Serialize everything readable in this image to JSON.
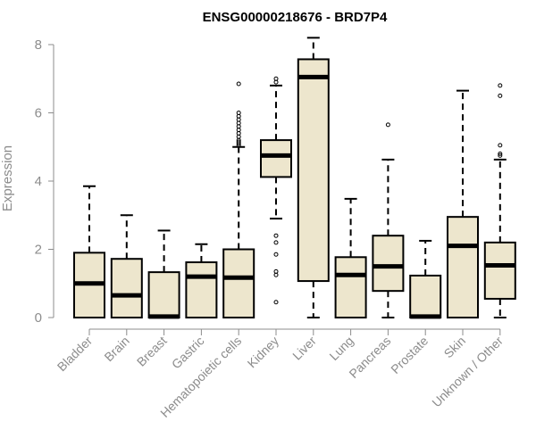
{
  "chart_data": {
    "type": "boxplot",
    "title": "ENSG00000218676 - BRD7P4",
    "xlabel": "",
    "ylabel": "Expression",
    "ylim": [
      0,
      8
    ],
    "yticks": [
      0,
      2,
      4,
      6,
      8
    ],
    "grid": false,
    "legend": "none",
    "colors": {
      "box_fill": "#ede6cd",
      "stroke": "#000000",
      "axis_text": "#8c8c8c"
    },
    "categories": [
      "Bladder",
      "Brain",
      "Breast",
      "Gastric",
      "Hematopoietic cells",
      "Kidney",
      "Liver",
      "Lung",
      "Pancreas",
      "Prostate",
      "Skin",
      "Unknown / Other"
    ],
    "boxes": [
      {
        "category": "Bladder",
        "whisker_low": 0,
        "q1": 0,
        "median": 1.0,
        "q3": 1.9,
        "whisker_high": 3.85,
        "outliers": []
      },
      {
        "category": "Brain",
        "whisker_low": 0,
        "q1": 0,
        "median": 0.65,
        "q3": 1.72,
        "whisker_high": 3.0,
        "outliers": []
      },
      {
        "category": "Breast",
        "whisker_low": 0,
        "q1": 0,
        "median": 0.03,
        "q3": 1.33,
        "whisker_high": 2.55,
        "outliers": []
      },
      {
        "category": "Gastric",
        "whisker_low": 0,
        "q1": 0,
        "median": 1.2,
        "q3": 1.62,
        "whisker_high": 2.15,
        "outliers": []
      },
      {
        "category": "Hematopoietic cells",
        "whisker_low": 0,
        "q1": 0,
        "median": 1.17,
        "q3": 2.0,
        "whisker_high": 5.0,
        "outliers": [
          5.05,
          5.1,
          5.15,
          5.2,
          5.3,
          5.4,
          5.5,
          5.6,
          5.7,
          5.8,
          5.9,
          6.0,
          6.85
        ]
      },
      {
        "category": "Kidney",
        "whisker_low": 2.9,
        "q1": 4.12,
        "median": 4.75,
        "q3": 5.2,
        "whisker_high": 6.8,
        "outliers": [
          0.45,
          1.25,
          1.35,
          1.85,
          2.2,
          2.4,
          6.9,
          7.0
        ]
      },
      {
        "category": "Liver",
        "whisker_low": 0,
        "q1": 1.07,
        "median": 7.05,
        "q3": 7.57,
        "whisker_high": 8.2,
        "outliers": []
      },
      {
        "category": "Lung",
        "whisker_low": 0,
        "q1": 0,
        "median": 1.25,
        "q3": 1.77,
        "whisker_high": 3.48,
        "outliers": []
      },
      {
        "category": "Pancreas",
        "whisker_low": 0,
        "q1": 0.78,
        "median": 1.5,
        "q3": 2.4,
        "whisker_high": 4.63,
        "outliers": [
          5.65
        ]
      },
      {
        "category": "Prostate",
        "whisker_low": 0,
        "q1": 0,
        "median": 0.03,
        "q3": 1.23,
        "whisker_high": 2.25,
        "outliers": []
      },
      {
        "category": "Skin",
        "whisker_low": 0,
        "q1": 0,
        "median": 2.1,
        "q3": 2.95,
        "whisker_high": 6.65,
        "outliers": []
      },
      {
        "category": "Unknown / Other",
        "whisker_low": 0,
        "q1": 0.55,
        "median": 1.53,
        "q3": 2.2,
        "whisker_high": 4.63,
        "outliers": [
          4.75,
          4.8,
          5.05,
          6.5,
          6.8
        ]
      }
    ]
  }
}
